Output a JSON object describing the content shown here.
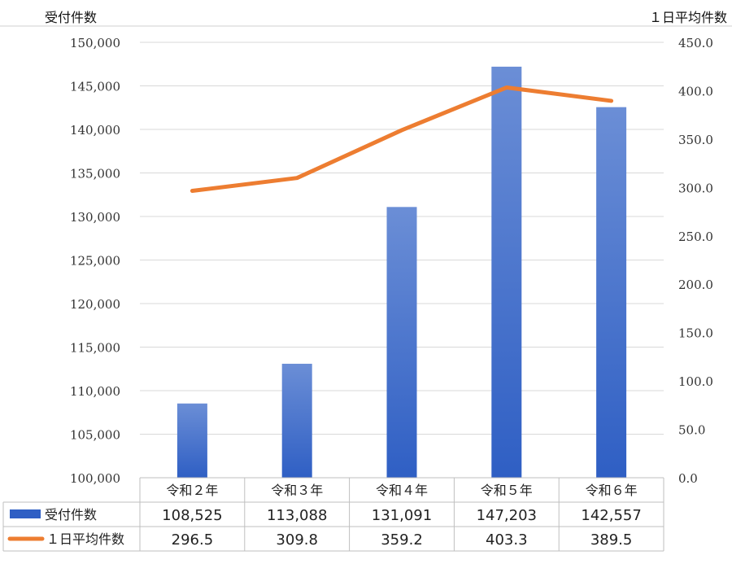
{
  "left_axis_title": "受付件数",
  "right_axis_title": "１日平均件数",
  "colors": {
    "bar_top": "#6B8ED6",
    "bar_bottom": "#2F5FC4",
    "line": "#ED7D31",
    "grid": "#D9D9D9",
    "table_border": "#BFBFBF"
  },
  "chart_data": {
    "type": "bar+line",
    "categories": [
      "令和２年",
      "令和３年",
      "令和４年",
      "令和５年",
      "令和６年"
    ],
    "series": [
      {
        "name": "受付件数",
        "kind": "bar",
        "axis": "left",
        "values": [
          108525,
          113088,
          131091,
          147203,
          142557
        ],
        "labels": [
          "108,525",
          "113,088",
          "131,091",
          "147,203",
          "142,557"
        ]
      },
      {
        "name": "１日平均件数",
        "kind": "line",
        "axis": "right",
        "values": [
          296.5,
          309.8,
          359.2,
          403.3,
          389.5
        ],
        "labels": [
          "296.5",
          "309.8",
          "359.2",
          "403.3",
          "389.5"
        ]
      }
    ],
    "left_axis": {
      "min": 100000,
      "max": 150000,
      "step": 5000,
      "tick_labels": [
        "100,000",
        "105,000",
        "110,000",
        "115,000",
        "120,000",
        "125,000",
        "130,000",
        "135,000",
        "140,000",
        "145,000",
        "150,000"
      ]
    },
    "right_axis": {
      "min": 0,
      "max": 450,
      "step": 50,
      "tick_labels": [
        "0.0",
        "50.0",
        "100.0",
        "150.0",
        "200.0",
        "250.0",
        "300.0",
        "350.0",
        "400.0",
        "450.0"
      ]
    },
    "grid": true,
    "legend": "data-table"
  }
}
